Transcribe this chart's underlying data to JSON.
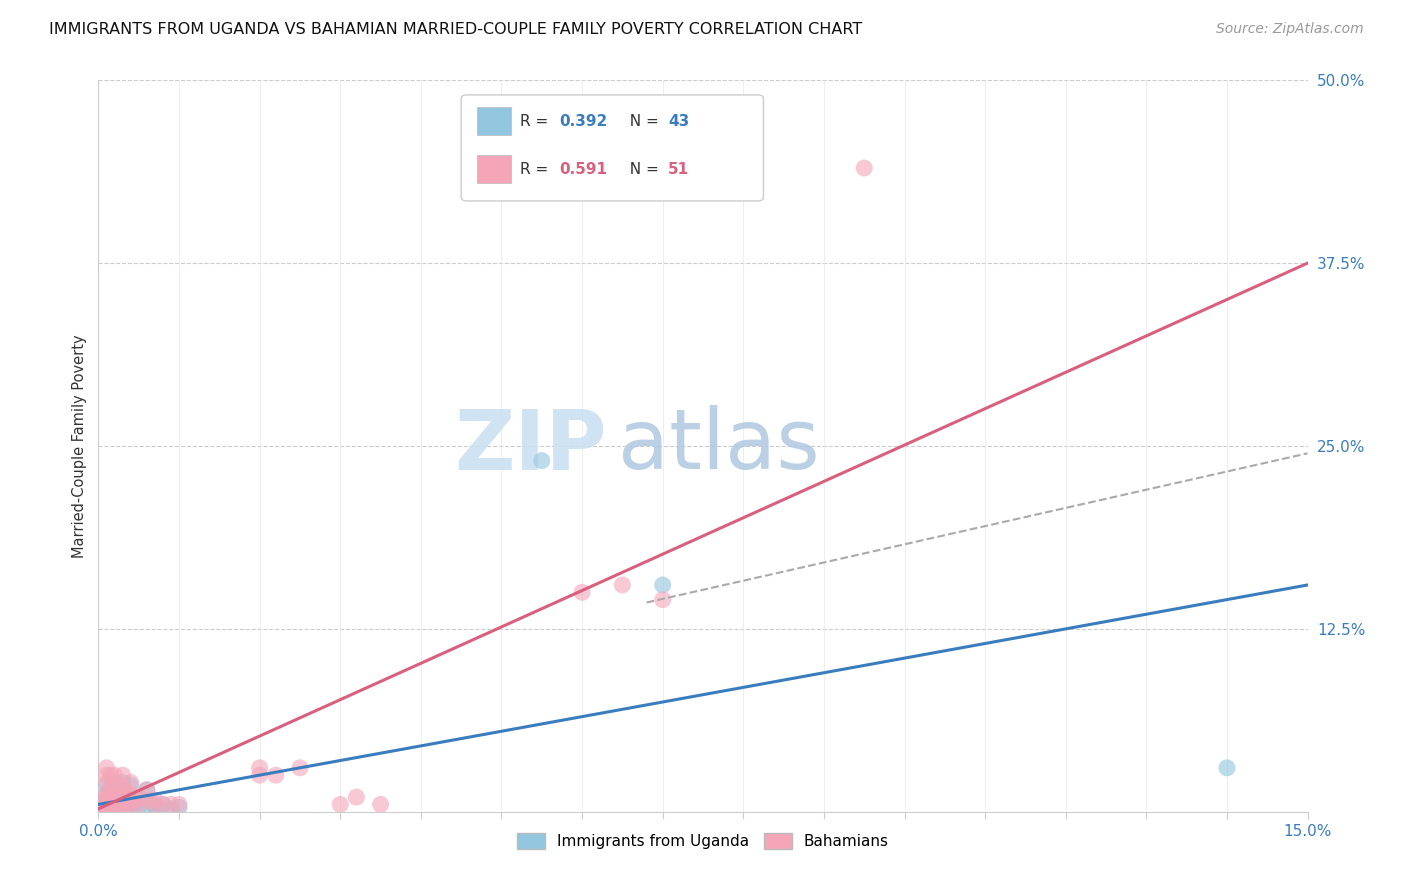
{
  "title": "IMMIGRANTS FROM UGANDA VS BAHAMIAN MARRIED-COUPLE FAMILY POVERTY CORRELATION CHART",
  "source": "Source: ZipAtlas.com",
  "ylabel": "Married-Couple Family Poverty",
  "xlim": [
    0,
    0.15
  ],
  "ylim": [
    0,
    0.5
  ],
  "ytick_positions_right": [
    0.5,
    0.375,
    0.25,
    0.125,
    0.0
  ],
  "ytick_labels_right": [
    "50.0%",
    "37.5%",
    "25.0%",
    "12.5%",
    ""
  ],
  "watermark_zip": "ZIP",
  "watermark_atlas": "atlas",
  "blue_color": "#92c5de",
  "pink_color": "#f4a6b8",
  "blue_line_color": "#3a7dbf",
  "pink_line_color": "#d95f7f",
  "gray_dash_color": "#aaaaaa",
  "uganda_points": [
    [
      0.0005,
      0.002
    ],
    [
      0.0008,
      0.005
    ],
    [
      0.001,
      0.001
    ],
    [
      0.001,
      0.003
    ],
    [
      0.001,
      0.006
    ],
    [
      0.001,
      0.008
    ],
    [
      0.001,
      0.012
    ],
    [
      0.001,
      0.018
    ],
    [
      0.0012,
      0.002
    ],
    [
      0.0015,
      0.004
    ],
    [
      0.0015,
      0.008
    ],
    [
      0.0015,
      0.015
    ],
    [
      0.002,
      0.001
    ],
    [
      0.002,
      0.003
    ],
    [
      0.002,
      0.006
    ],
    [
      0.002,
      0.01
    ],
    [
      0.002,
      0.015
    ],
    [
      0.002,
      0.02
    ],
    [
      0.0025,
      0.002
    ],
    [
      0.0025,
      0.008
    ],
    [
      0.003,
      0.002
    ],
    [
      0.003,
      0.005
    ],
    [
      0.003,
      0.01
    ],
    [
      0.003,
      0.015
    ],
    [
      0.003,
      0.02
    ],
    [
      0.0035,
      0.003
    ],
    [
      0.0035,
      0.012
    ],
    [
      0.004,
      0.004
    ],
    [
      0.004,
      0.01
    ],
    [
      0.004,
      0.018
    ],
    [
      0.0045,
      0.005
    ],
    [
      0.005,
      0.003
    ],
    [
      0.005,
      0.008
    ],
    [
      0.006,
      0.005
    ],
    [
      0.006,
      0.015
    ],
    [
      0.007,
      0.003
    ],
    [
      0.007,
      0.005
    ],
    [
      0.008,
      0.005
    ],
    [
      0.009,
      0.002
    ],
    [
      0.01,
      0.003
    ],
    [
      0.055,
      0.24
    ],
    [
      0.07,
      0.155
    ],
    [
      0.14,
      0.03
    ]
  ],
  "bahamian_points": [
    [
      0.0005,
      0.002
    ],
    [
      0.0008,
      0.008
    ],
    [
      0.001,
      0.001
    ],
    [
      0.001,
      0.004
    ],
    [
      0.001,
      0.008
    ],
    [
      0.001,
      0.012
    ],
    [
      0.001,
      0.02
    ],
    [
      0.001,
      0.025
    ],
    [
      0.001,
      0.03
    ],
    [
      0.0015,
      0.003
    ],
    [
      0.0015,
      0.01
    ],
    [
      0.0015,
      0.015
    ],
    [
      0.0015,
      0.025
    ],
    [
      0.002,
      0.002
    ],
    [
      0.002,
      0.005
    ],
    [
      0.002,
      0.01
    ],
    [
      0.002,
      0.018
    ],
    [
      0.002,
      0.025
    ],
    [
      0.0025,
      0.003
    ],
    [
      0.0025,
      0.012
    ],
    [
      0.003,
      0.003
    ],
    [
      0.003,
      0.008
    ],
    [
      0.003,
      0.015
    ],
    [
      0.003,
      0.018
    ],
    [
      0.003,
      0.025
    ],
    [
      0.0035,
      0.005
    ],
    [
      0.0035,
      0.01
    ],
    [
      0.004,
      0.005
    ],
    [
      0.004,
      0.012
    ],
    [
      0.004,
      0.02
    ],
    [
      0.0045,
      0.008
    ],
    [
      0.005,
      0.005
    ],
    [
      0.005,
      0.01
    ],
    [
      0.006,
      0.008
    ],
    [
      0.006,
      0.015
    ],
    [
      0.007,
      0.005
    ],
    [
      0.007,
      0.008
    ],
    [
      0.008,
      0.005
    ],
    [
      0.009,
      0.005
    ],
    [
      0.01,
      0.005
    ],
    [
      0.02,
      0.025
    ],
    [
      0.02,
      0.03
    ],
    [
      0.022,
      0.025
    ],
    [
      0.025,
      0.03
    ],
    [
      0.03,
      0.005
    ],
    [
      0.032,
      0.01
    ],
    [
      0.035,
      0.005
    ],
    [
      0.06,
      0.15
    ],
    [
      0.065,
      0.155
    ],
    [
      0.07,
      0.145
    ],
    [
      0.095,
      0.44
    ]
  ],
  "uganda_line": {
    "x0": 0.0,
    "y0": 0.005,
    "x1": 0.15,
    "y1": 0.155
  },
  "bahamian_line": {
    "x0": 0.0,
    "y0": 0.002,
    "x1": 0.15,
    "y1": 0.375
  },
  "gray_dash_line": {
    "x0": 0.068,
    "y0": 0.143,
    "x1": 0.15,
    "y1": 0.245
  }
}
